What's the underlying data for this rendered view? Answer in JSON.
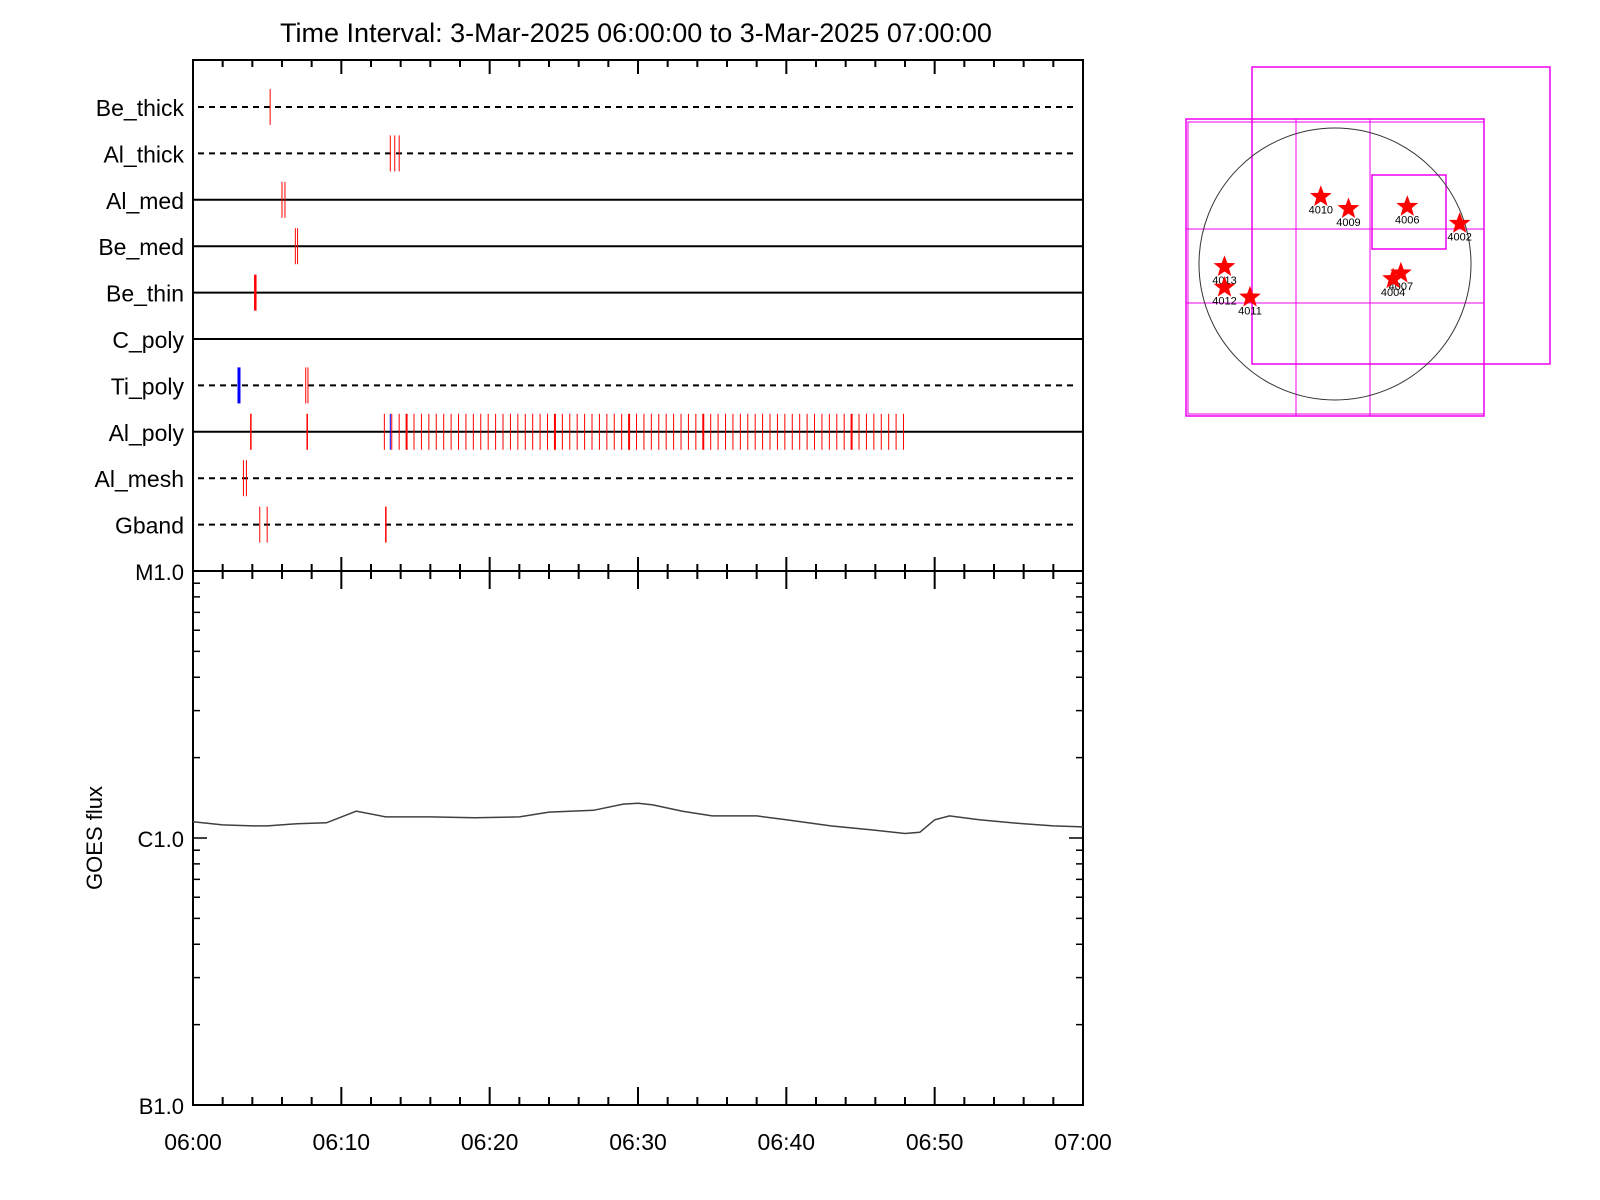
{
  "title": "Time Interval:  3-Mar-2025 06:00:00 to  3-Mar-2025 07:00:00",
  "colors": {
    "axis": "#000000",
    "event": "#ff0000",
    "event_alt": "#0000ff",
    "curve": "#404040",
    "box": "#ee00ee",
    "star": "#ff0000"
  },
  "chart_data": [
    {
      "type": "timeline",
      "time_range": [
        "06:00",
        "07:00"
      ],
      "channels": [
        {
          "name": "Be_thick",
          "style": "dashed",
          "events": [
            {
              "t": 5.2,
              "color": "red",
              "w": 1
            }
          ]
        },
        {
          "name": "Al_thick",
          "style": "dashed",
          "events": [
            {
              "t": 13.3,
              "color": "red",
              "w": 1
            },
            {
              "t": 13.6,
              "color": "red",
              "w": 1
            },
            {
              "t": 13.9,
              "color": "red",
              "w": 1
            }
          ]
        },
        {
          "name": "Al_med",
          "style": "solid",
          "events": [
            {
              "t": 6.0,
              "color": "red",
              "w": 1
            },
            {
              "t": 6.2,
              "color": "red",
              "w": 1
            }
          ]
        },
        {
          "name": "Be_med",
          "style": "solid",
          "events": [
            {
              "t": 6.9,
              "color": "red",
              "w": 1
            },
            {
              "t": 7.05,
              "color": "red",
              "w": 1
            }
          ]
        },
        {
          "name": "Be_thin",
          "style": "solid",
          "events": [
            {
              "t": 4.2,
              "color": "red",
              "w": 2.5
            }
          ]
        },
        {
          "name": "C_poly",
          "style": "solid",
          "events": []
        },
        {
          "name": "Ti_poly",
          "style": "dashed",
          "events": [
            {
              "t": 3.1,
              "color": "blue",
              "w": 3
            },
            {
              "t": 7.6,
              "color": "red",
              "w": 1
            },
            {
              "t": 7.75,
              "color": "red",
              "w": 1
            }
          ]
        },
        {
          "name": "Al_poly",
          "style": "solid",
          "events": []
        },
        {
          "name": "Al_mesh",
          "style": "dashed",
          "events": [
            {
              "t": 3.4,
              "color": "red",
              "w": 1
            },
            {
              "t": 3.6,
              "color": "red",
              "w": 1
            }
          ]
        },
        {
          "name": "Gband",
          "style": "dashed",
          "events": [
            {
              "t": 4.5,
              "color": "red",
              "w": 1
            },
            {
              "t": 5.0,
              "color": "red",
              "w": 1
            },
            {
              "t": 13.0,
              "color": "red",
              "w": 1.5
            }
          ]
        }
      ],
      "al_poly_events": {
        "singles": [
          3.9,
          7.7
        ],
        "blue": [
          13.3
        ],
        "train_start": 12.9,
        "train_end": 47.9,
        "train_step": 0.5
      }
    },
    {
      "type": "line",
      "ylabel": "GOES flux",
      "yscale": "log",
      "ylim": [
        1e-07,
        1e-05
      ],
      "ytick_labels": [
        "B1.0",
        "C1.0",
        "M1.0"
      ],
      "ytick_values": [
        1e-07,
        1e-06,
        1e-05
      ],
      "xtick_labels": [
        "06:00",
        "06:10",
        "06:20",
        "06:30",
        "06:40",
        "06:50",
        "07:00"
      ],
      "x_minutes": [
        0,
        2,
        4,
        5,
        7,
        9,
        11,
        13,
        16,
        19,
        22,
        24,
        27,
        29,
        30,
        31,
        33,
        35,
        38,
        40,
        43,
        46,
        48,
        49,
        50,
        51,
        53,
        56,
        58,
        60
      ],
      "flux": [
        1.15e-06,
        1.12e-06,
        1.11e-06,
        1.11e-06,
        1.13e-06,
        1.14e-06,
        1.26e-06,
        1.2e-06,
        1.2e-06,
        1.19e-06,
        1.2e-06,
        1.25e-06,
        1.27e-06,
        1.34e-06,
        1.35e-06,
        1.33e-06,
        1.26e-06,
        1.21e-06,
        1.21e-06,
        1.17e-06,
        1.11e-06,
        1.07e-06,
        1.04e-06,
        1.05e-06,
        1.17e-06,
        1.21e-06,
        1.17e-06,
        1.13e-06,
        1.11e-06,
        1.1e-06
      ]
    }
  ],
  "map": {
    "stars": [
      {
        "label": "4010",
        "x": -100,
        "y": 475
      },
      {
        "label": "4009",
        "x": 95,
        "y": 390
      },
      {
        "label": "4006",
        "x": 510,
        "y": 405
      },
      {
        "label": "4002",
        "x": 880,
        "y": 285
      },
      {
        "label": "4013",
        "x": -780,
        "y": -20
      },
      {
        "label": "4012",
        "x": -780,
        "y": -165
      },
      {
        "label": "4011",
        "x": -600,
        "y": -235
      },
      {
        "label": "4007",
        "x": 465,
        "y": -65
      },
      {
        "label": "4004",
        "x": 410,
        "y": -105
      }
    ]
  }
}
